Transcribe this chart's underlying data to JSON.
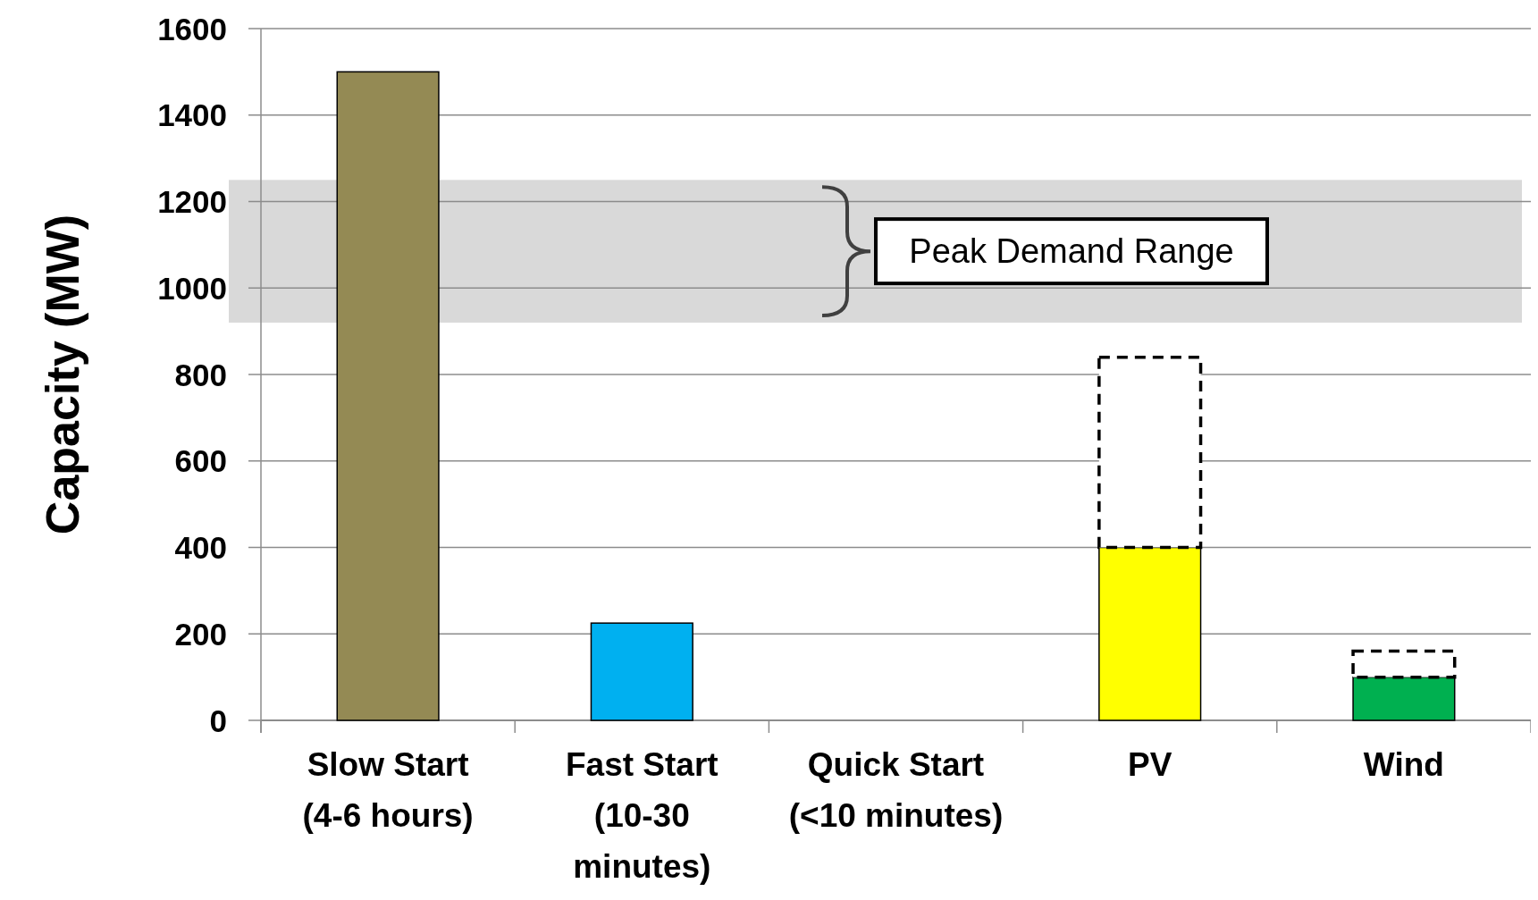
{
  "chart_data": {
    "type": "bar",
    "ylabel": "Capacity (MW)",
    "categories": [
      "Slow Start (4-6 hours)",
      "Fast Start (10-30 minutes)",
      "Quick Start (<10 minutes)",
      "PV",
      "Wind"
    ],
    "stacked": true,
    "series": [
      {
        "colors": [
          "#948a54",
          "#00b0f0",
          "#00b050",
          "#ffff00",
          "#00b050"
        ],
        "values": [
          1500,
          225,
          0,
          400,
          100
        ]
      },
      {
        "color": "#ffffff",
        "line_style": "dashed",
        "values": [
          null,
          null,
          null,
          440,
          60
        ]
      }
    ],
    "ylim": [
      0,
      1600
    ],
    "yticks": [
      0,
      200,
      400,
      600,
      800,
      1000,
      1200,
      1400,
      1600
    ],
    "grid": "y",
    "bands": [
      {
        "axis": "y",
        "from": 920,
        "to": 1250,
        "label": "Peak Demand Range",
        "color": "#d9d9d9"
      }
    ]
  }
}
